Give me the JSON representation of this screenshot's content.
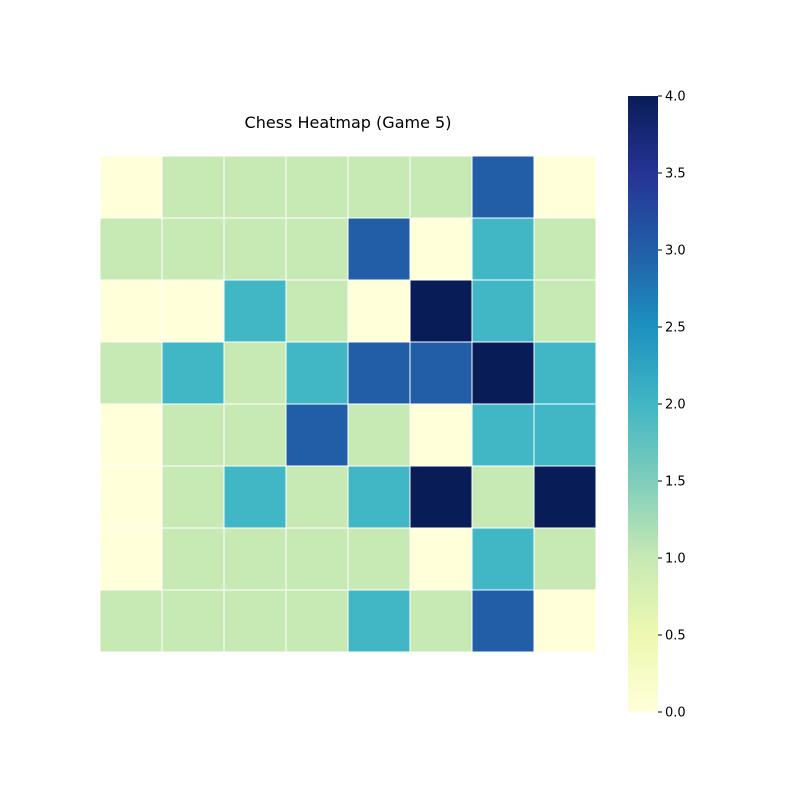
{
  "chart_data": {
    "type": "heatmap",
    "title": "Chess Heatmap (Game 5)",
    "xlabel": "",
    "ylabel": "",
    "rows": 8,
    "cols": 8,
    "values": [
      [
        0,
        1,
        1,
        1,
        1,
        1,
        3,
        0
      ],
      [
        1,
        1,
        1,
        1,
        3,
        0,
        2,
        1
      ],
      [
        0,
        0,
        2,
        1,
        0,
        4,
        2,
        1
      ],
      [
        1,
        2,
        1,
        2,
        3,
        3,
        4,
        2
      ],
      [
        0,
        1,
        1,
        3,
        1,
        0,
        2,
        2
      ],
      [
        0,
        1,
        2,
        1,
        2,
        4,
        1,
        4
      ],
      [
        0,
        1,
        1,
        1,
        1,
        0,
        2,
        1
      ],
      [
        1,
        1,
        1,
        1,
        2,
        1,
        3,
        0
      ]
    ],
    "colorscale": "YlGnBu",
    "vmin": 0,
    "vmax": 4,
    "colorbar": {
      "ticks": [
        0.0,
        0.5,
        1.0,
        1.5,
        2.0,
        2.5,
        3.0,
        3.5,
        4.0
      ],
      "tick_labels": [
        "0.0",
        "0.5",
        "1.0",
        "1.5",
        "2.0",
        "2.5",
        "3.0",
        "3.5",
        "4.0"
      ]
    },
    "grid": true,
    "colors": {
      "cell_border": "#ffffff"
    }
  }
}
